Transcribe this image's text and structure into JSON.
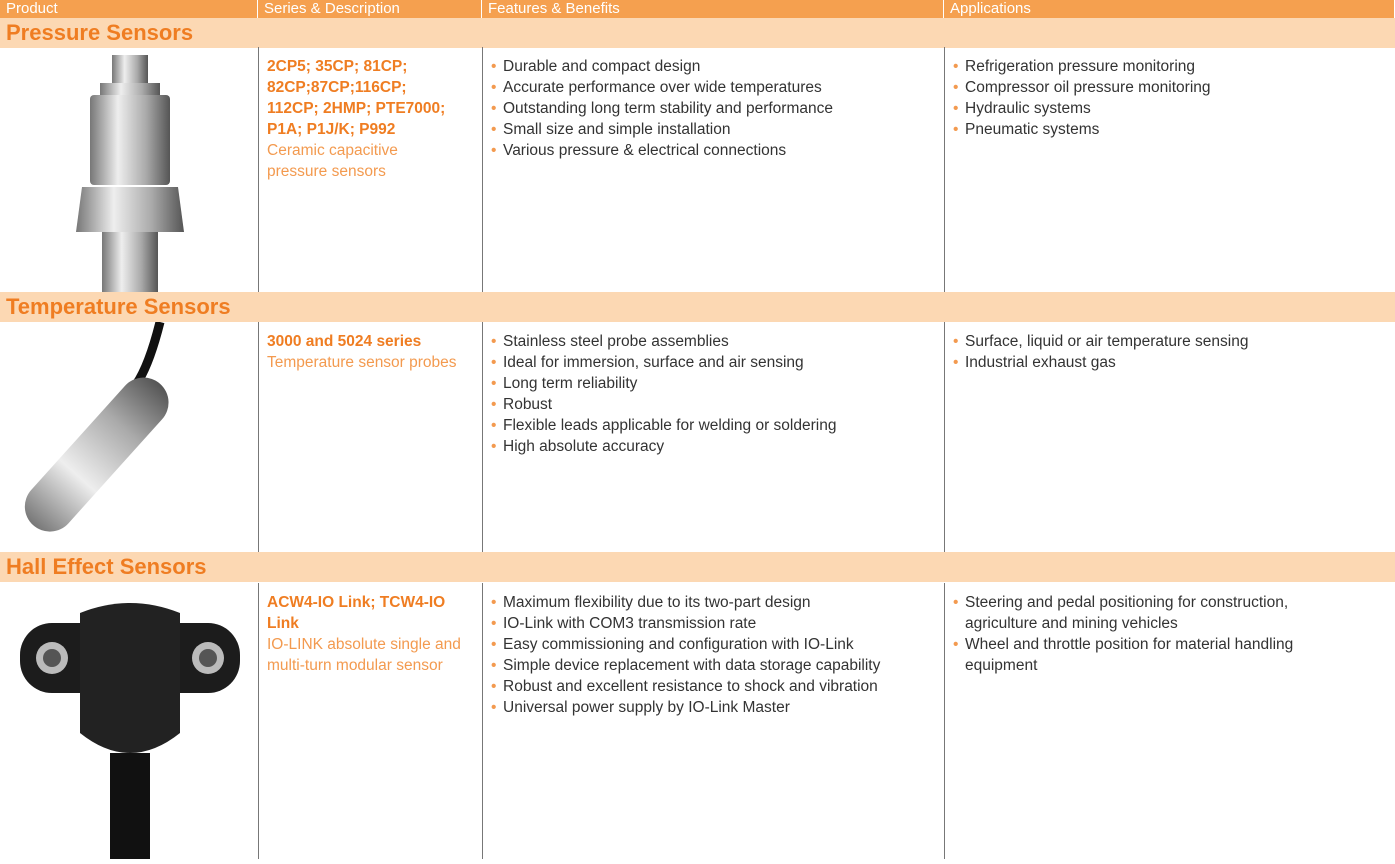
{
  "header": {
    "columns": [
      "Product",
      "Series & Description",
      "Features & Benefits",
      "Applications"
    ]
  },
  "sections": [
    {
      "title": "Pressure Sensors",
      "series": "2CP5; 35CP; 81CP; 82CP;87CP;116CP; 112CP; 2HMP; PTE7000; P1A; P1J/K; P992",
      "description": "Ceramic capacitive pressure sensors",
      "features": [
        "Durable and compact design",
        "Accurate performance over wide temperatures",
        "Outstanding long term stability and performance",
        "Small size and simple installation",
        "Various pressure & electrical connections"
      ],
      "applications": [
        "Refrigeration pressure monitoring",
        "Compressor oil pressure monitoring",
        "Hydraulic systems",
        "Pneumatic systems"
      ]
    },
    {
      "title": "Temperature Sensors",
      "series": "3000 and 5024 series",
      "description": "Temperature sensor probes",
      "features": [
        "Stainless steel probe assemblies",
        "Ideal for immersion, surface and air sensing",
        "Long term reliability",
        "Robust",
        "Flexible leads applicable for welding or soldering",
        "High absolute accuracy"
      ],
      "applications": [
        "Surface, liquid or air temperature sensing",
        "Industrial exhaust gas"
      ]
    },
    {
      "title": "Hall Effect Sensors",
      "series": "ACW4-IO Link; TCW4-IO Link",
      "description": "IO-LINK absolute single and multi-turn modular sensor",
      "features": [
        "Maximum flexibility due to its two-part design",
        "IO-Link with COM3 transmission rate",
        "Easy commissioning and configuration with IO-Link",
        "Simple device replacement with data storage capability",
        "Robust and excellent resistance to shock and vibration",
        "Universal power supply by IO-Link Master"
      ],
      "applications": [
        "Steering and pedal positioning for construction, agriculture and mining vehicles",
        "Wheel and throttle position for material handling equipment"
      ]
    }
  ]
}
